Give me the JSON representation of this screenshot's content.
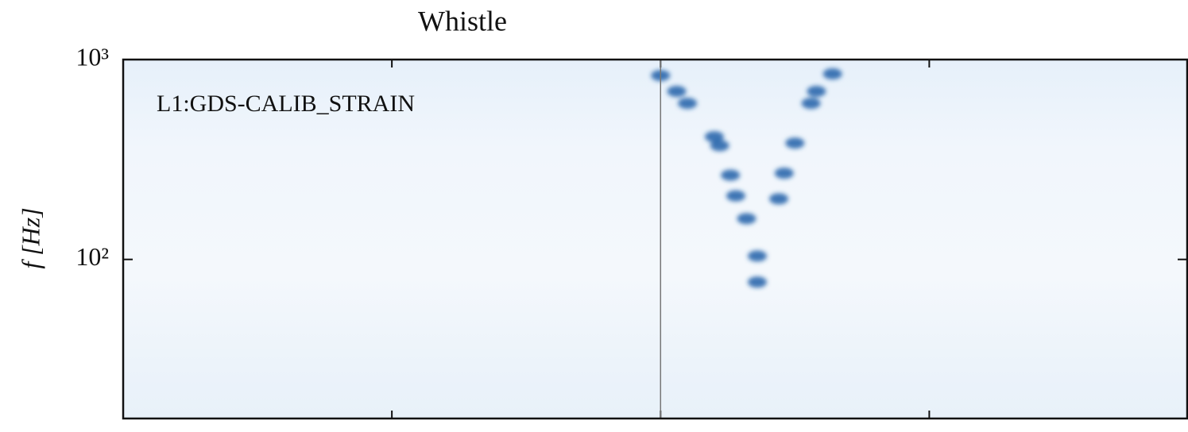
{
  "chart_data": {
    "type": "spectrogram",
    "title": "Whistle",
    "annotation": "L1:GDS-CALIB_STRAIN",
    "y_label": "f [Hz]",
    "log_y": true,
    "grid": false,
    "color": "#1f5fa8",
    "xlim": [
      -1,
      0.98
    ],
    "xticks": [
      -0.5,
      0,
      0.5
    ],
    "vline": 0,
    "ylim": [
      16,
      1000
    ],
    "yticks": [
      {
        "value": 1000,
        "label": "10³"
      },
      {
        "value": 100,
        "label": "10²"
      }
    ],
    "x": [
      0,
      0.03,
      0.05,
      0.1,
      0.11,
      0.13,
      0.14,
      0.16,
      0.18,
      0.18,
      0.32,
      0.29,
      0.28,
      0.25,
      0.23,
      0.22
    ],
    "values": [
      832,
      693,
      604,
      411,
      371,
      264,
      208,
      160,
      104,
      77,
      848,
      693,
      604,
      382,
      270,
      201
    ]
  }
}
